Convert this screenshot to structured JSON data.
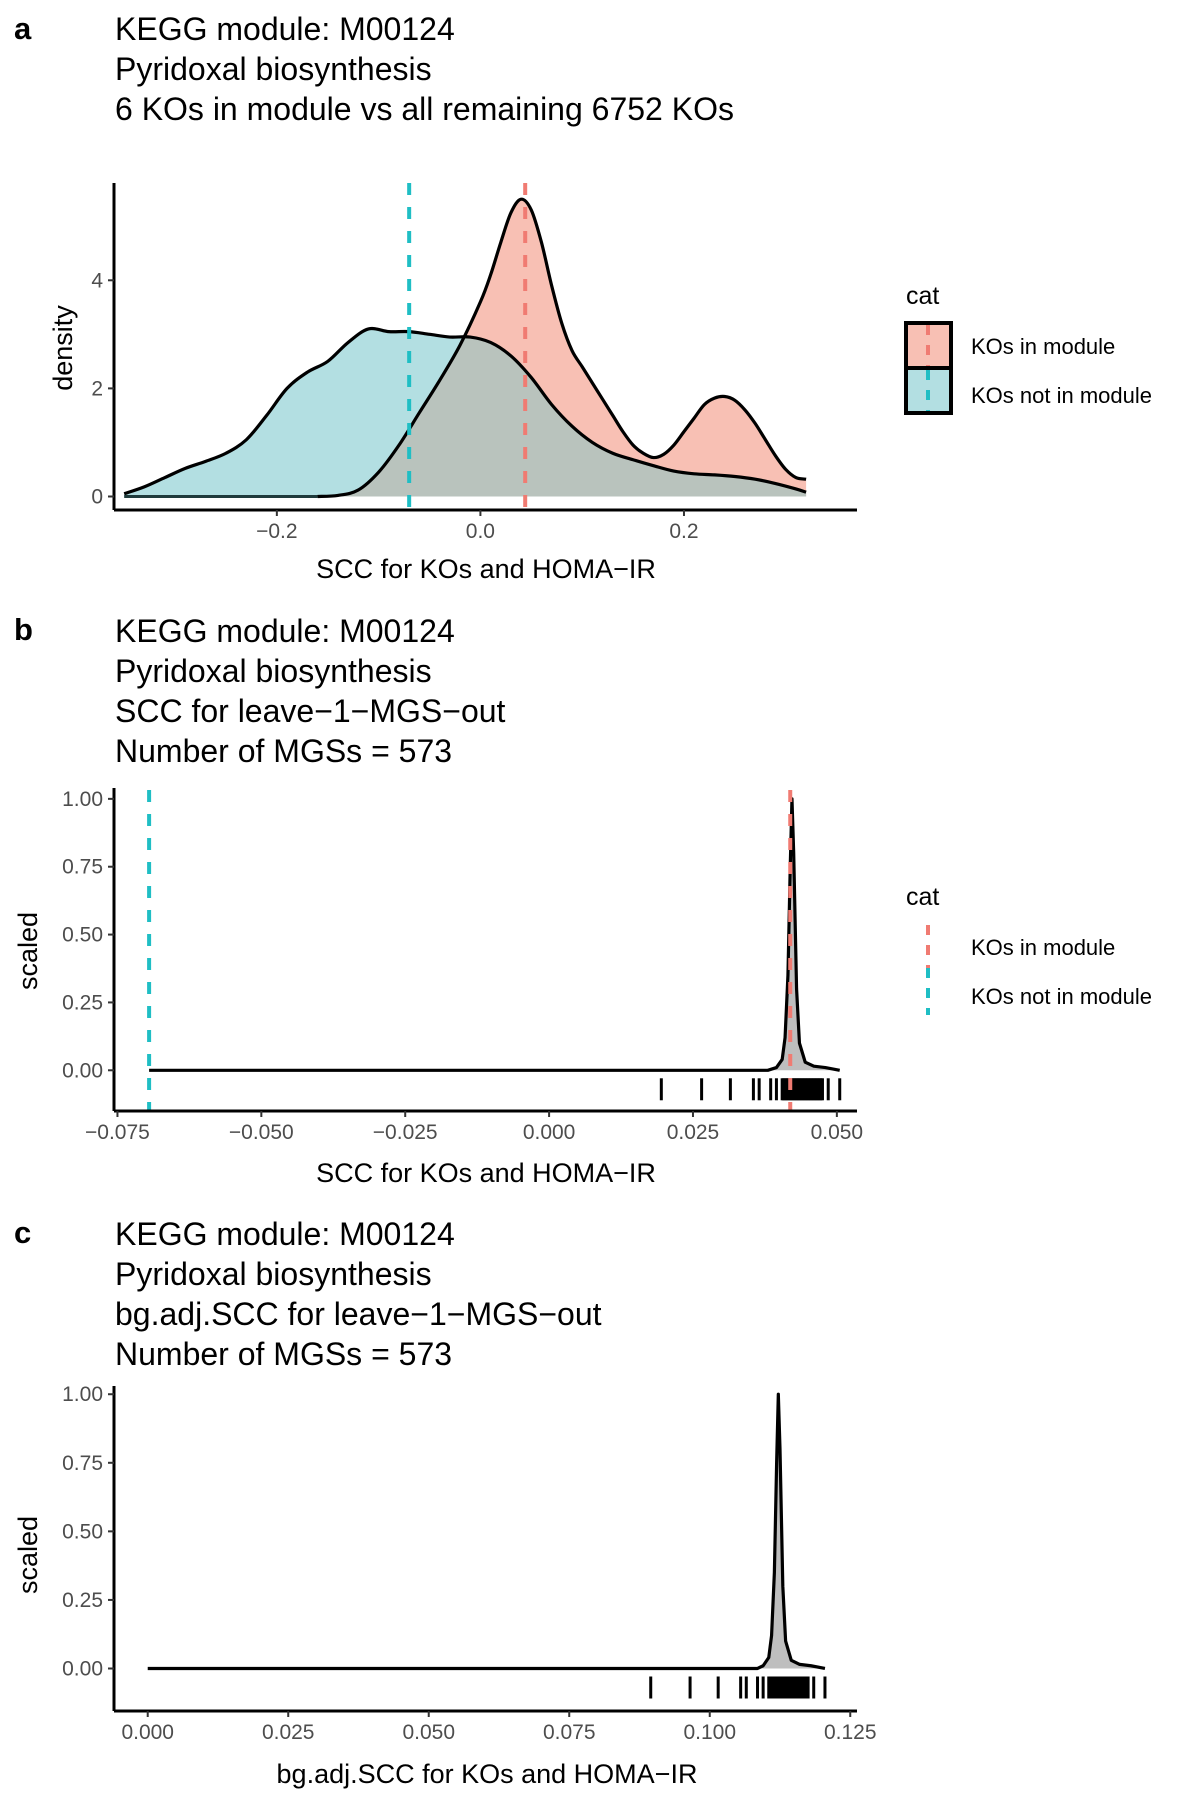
{
  "chart_data": [
    {
      "panel": "a",
      "type": "area",
      "subtype": "density",
      "title_lines": [
        "KEGG module: M00124",
        "Pyridoxal biosynthesis",
        "6 KOs in module vs all remaining 6752 KOs"
      ],
      "xlabel": "SCC for KOs and HOMA−IR",
      "ylabel": "density",
      "xlim": [
        -0.36,
        0.37
      ],
      "ylim": [
        -0.25,
        5.8
      ],
      "x_ticks": [
        {
          "v": -0.2,
          "label": "−0.2"
        },
        {
          "v": 0.0,
          "label": "0.0"
        },
        {
          "v": 0.2,
          "label": "0.2"
        }
      ],
      "y_ticks": [
        {
          "v": 0,
          "label": "0"
        },
        {
          "v": 2,
          "label": "2"
        },
        {
          "v": 4,
          "label": "4"
        }
      ],
      "grid": false,
      "legend": {
        "title": "cat",
        "position": "right",
        "entries": [
          "KOs in module",
          "KOs not in module"
        ]
      },
      "series": [
        {
          "name": "KOs not in module",
          "fill": "#b3dfe2",
          "vline": -0.07,
          "vline_color": "#1fbec4",
          "x": [
            -0.35,
            -0.33,
            -0.31,
            -0.29,
            -0.27,
            -0.25,
            -0.23,
            -0.21,
            -0.19,
            -0.17,
            -0.15,
            -0.13,
            -0.11,
            -0.09,
            -0.07,
            -0.05,
            -0.03,
            -0.01,
            0.01,
            0.03,
            0.05,
            0.07,
            0.09,
            0.11,
            0.13,
            0.15,
            0.17,
            0.19,
            0.21,
            0.23,
            0.25,
            0.27,
            0.29,
            0.31,
            0.32
          ],
          "y": [
            0.05,
            0.18,
            0.35,
            0.52,
            0.65,
            0.8,
            1.05,
            1.5,
            2.0,
            2.3,
            2.5,
            2.85,
            3.1,
            3.05,
            3.05,
            3.0,
            2.95,
            2.95,
            2.85,
            2.6,
            2.2,
            1.7,
            1.3,
            1.0,
            0.8,
            0.68,
            0.57,
            0.47,
            0.42,
            0.4,
            0.37,
            0.32,
            0.24,
            0.14,
            0.08
          ]
        },
        {
          "name": "KOs in module",
          "fill": "#f8c0b4",
          "vline": 0.044,
          "vline_color": "#f07b72",
          "x": [
            -0.16,
            -0.14,
            -0.12,
            -0.1,
            -0.08,
            -0.06,
            -0.04,
            -0.02,
            0.0,
            0.01,
            0.02,
            0.03,
            0.04,
            0.05,
            0.06,
            0.07,
            0.08,
            0.09,
            0.1,
            0.11,
            0.12,
            0.13,
            0.14,
            0.15,
            0.16,
            0.17,
            0.18,
            0.19,
            0.2,
            0.21,
            0.22,
            0.23,
            0.24,
            0.25,
            0.26,
            0.27,
            0.28,
            0.29,
            0.3,
            0.31,
            0.32
          ],
          "y": [
            0.0,
            0.02,
            0.12,
            0.45,
            0.95,
            1.55,
            2.15,
            2.8,
            3.6,
            4.1,
            4.7,
            5.25,
            5.5,
            5.3,
            4.7,
            3.9,
            3.2,
            2.7,
            2.4,
            2.1,
            1.8,
            1.5,
            1.2,
            0.95,
            0.8,
            0.72,
            0.78,
            0.95,
            1.2,
            1.45,
            1.7,
            1.82,
            1.85,
            1.78,
            1.6,
            1.35,
            1.05,
            0.75,
            0.5,
            0.35,
            0.32
          ]
        }
      ]
    },
    {
      "panel": "b",
      "type": "area",
      "subtype": "scaled density with rug",
      "title_lines": [
        "KEGG module: M00124",
        "Pyridoxal biosynthesis",
        "SCC for leave−1−MGS−out",
        "Number of MGSs = 573"
      ],
      "xlabel": "SCC for KOs and HOMA−IR",
      "ylabel": "scaled",
      "xlim": [
        -0.0756,
        0.0535
      ],
      "ylim": [
        -0.15,
        1.04
      ],
      "x_ticks": [
        {
          "v": -0.075,
          "label": "−0.075"
        },
        {
          "v": -0.05,
          "label": "−0.050"
        },
        {
          "v": -0.025,
          "label": "−0.025"
        },
        {
          "v": 0.0,
          "label": "0.000"
        },
        {
          "v": 0.025,
          "label": "0.025"
        },
        {
          "v": 0.05,
          "label": "0.050"
        }
      ],
      "y_ticks": [
        {
          "v": 0,
          "label": "0.00"
        },
        {
          "v": 0.25,
          "label": "0.25"
        },
        {
          "v": 0.5,
          "label": "0.50"
        },
        {
          "v": 0.75,
          "label": "0.75"
        },
        {
          "v": 1.0,
          "label": "1.00"
        }
      ],
      "grid": false,
      "legend": {
        "title": "cat",
        "position": "right",
        "entries": [
          "KOs in module",
          "KOs not in module"
        ]
      },
      "density": {
        "x": [
          -0.0695,
          0.038,
          0.0395,
          0.0405,
          0.041,
          0.0415,
          0.0419,
          0.0422,
          0.0425,
          0.043,
          0.0435,
          0.0445,
          0.046,
          0.048,
          0.0505
        ],
        "y": [
          0.0,
          0.0,
          0.01,
          0.04,
          0.12,
          0.35,
          0.75,
          1.0,
          0.8,
          0.3,
          0.1,
          0.03,
          0.015,
          0.01,
          0.0
        ]
      },
      "rug": [
        0.0195,
        0.0265,
        0.0315,
        0.0355,
        0.0365,
        0.0385,
        0.0395,
        0.0405,
        0.041,
        0.0415,
        0.042,
        0.0425,
        0.043,
        0.0435,
        0.044,
        0.0445,
        0.045,
        0.0455,
        0.046,
        0.0465,
        0.047,
        0.0475,
        0.0485,
        0.0505
      ],
      "vlines": [
        {
          "name": "KOs not in module",
          "x": -0.0695,
          "color": "#1fbec4"
        },
        {
          "name": "KOs in module",
          "x": 0.0419,
          "color": "#f07b72"
        }
      ]
    },
    {
      "panel": "c",
      "type": "area",
      "subtype": "scaled density with rug",
      "title_lines": [
        "KEGG module: M00124",
        "Pyridoxal biosynthesis",
        "bg.adj.SCC for leave−1−MGS−out",
        "Number of MGSs = 573"
      ],
      "xlabel": "bg.adj.SCC for KOs and HOMA−IR",
      "ylabel": "scaled",
      "xlim": [
        -0.006,
        0.1262
      ],
      "ylim": [
        -0.155,
        1.03
      ],
      "x_ticks": [
        {
          "v": 0.0,
          "label": "0.000"
        },
        {
          "v": 0.025,
          "label": "0.025"
        },
        {
          "v": 0.05,
          "label": "0.050"
        },
        {
          "v": 0.075,
          "label": "0.075"
        },
        {
          "v": 0.1,
          "label": "0.100"
        },
        {
          "v": 0.125,
          "label": "0.125"
        }
      ],
      "y_ticks": [
        {
          "v": 0,
          "label": "0.00"
        },
        {
          "v": 0.25,
          "label": "0.25"
        },
        {
          "v": 0.5,
          "label": "0.50"
        },
        {
          "v": 0.75,
          "label": "0.75"
        },
        {
          "v": 1.0,
          "label": "1.00"
        }
      ],
      "grid": false,
      "density": {
        "x": [
          0.0,
          0.1085,
          0.1095,
          0.1105,
          0.111,
          0.1115,
          0.1119,
          0.1122,
          0.1125,
          0.113,
          0.1135,
          0.1145,
          0.116,
          0.118,
          0.1205
        ],
        "y": [
          0.0,
          0.0,
          0.01,
          0.04,
          0.12,
          0.35,
          0.75,
          1.0,
          0.8,
          0.3,
          0.1,
          0.03,
          0.015,
          0.01,
          0.0
        ]
      },
      "rug": [
        0.0895,
        0.0965,
        0.1015,
        0.1055,
        0.1065,
        0.1085,
        0.1095,
        0.1105,
        0.111,
        0.1115,
        0.112,
        0.1125,
        0.113,
        0.1135,
        0.114,
        0.1145,
        0.115,
        0.1155,
        0.116,
        0.1165,
        0.117,
        0.1175,
        0.1185,
        0.1205
      ]
    }
  ],
  "panels": {
    "a": {
      "letter": "a"
    },
    "b": {
      "letter": "b"
    },
    "c": {
      "letter": "c"
    }
  },
  "colors": {
    "module_line": "#f07b72",
    "module_fill": "#f8c0b4",
    "not_module_line": "#1fbec4",
    "not_module_fill": "#b3dfe2",
    "overlap_fill": "#b9c3bd",
    "density_fill": "#bebebe"
  }
}
